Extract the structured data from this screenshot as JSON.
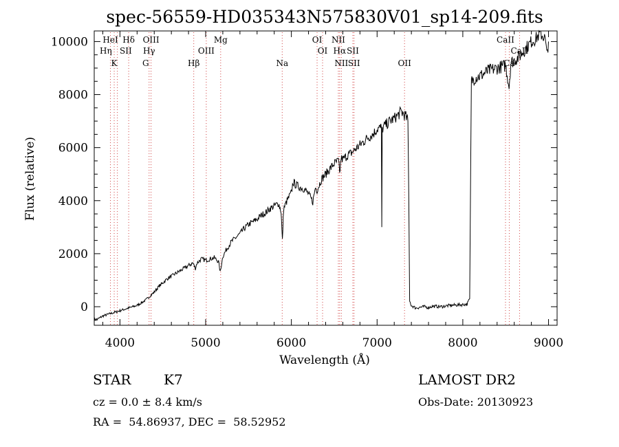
{
  "chart_data": {
    "type": "line",
    "title": "spec-56559-HD035343N575830V01_sp14-209.fits",
    "xlabel": "Wavelength (Å)",
    "ylabel": "Flux (relative)",
    "xlim": [
      3700,
      9100
    ],
    "ylim": [
      -700,
      10400
    ],
    "xticks": [
      4000,
      5000,
      6000,
      7000,
      8000,
      9000
    ],
    "yticks": [
      0,
      2000,
      4000,
      6000,
      8000,
      10000
    ],
    "grid": false,
    "legend": "none",
    "line_color": "#000000",
    "marker_line_color": "#d04040",
    "series": [
      {
        "x": [
          3700,
          3750,
          3800,
          3850,
          3900,
          3950,
          4000,
          4050,
          4100,
          4150,
          4200,
          4250,
          4300,
          4350,
          4400,
          4450,
          4500,
          4550,
          4600,
          4650,
          4700,
          4750,
          4800,
          4850,
          4880,
          4900,
          4950,
          5000,
          5050,
          5100,
          5150,
          5170,
          5200,
          5250,
          5300,
          5350,
          5400,
          5450,
          5500,
          5550,
          5600,
          5650,
          5700,
          5750,
          5800,
          5850,
          5880,
          5895,
          5910,
          5950,
          6000,
          6020,
          6050,
          6100,
          6150,
          6200,
          6250,
          6280,
          6300,
          6350,
          6400,
          6450,
          6500,
          6550,
          6563,
          6580,
          6600,
          6650,
          6700,
          6750,
          6800,
          6850,
          6900,
          6950,
          7000,
          7050,
          7055,
          7060,
          7080,
          7100,
          7150,
          7200,
          7250,
          7280,
          7300,
          7330,
          7360,
          7370,
          7380,
          7400,
          7450,
          7500,
          7550,
          7600,
          7650,
          7700,
          7750,
          7800,
          7850,
          7900,
          7950,
          8000,
          8050,
          8080,
          8100,
          8150,
          8200,
          8250,
          8300,
          8350,
          8400,
          8450,
          8500,
          8540,
          8560,
          8600,
          8650,
          8700,
          8750,
          8800,
          8850,
          8900,
          8940,
          8960,
          8980,
          9000
        ],
        "y": [
          -500,
          -450,
          -350,
          -300,
          -250,
          -200,
          -150,
          -100,
          -50,
          0,
          50,
          150,
          250,
          400,
          550,
          750,
          900,
          1050,
          1150,
          1250,
          1350,
          1450,
          1550,
          1650,
          1450,
          1650,
          1800,
          1750,
          1800,
          1850,
          1700,
          1300,
          1900,
          2200,
          2450,
          2600,
          2750,
          2950,
          3100,
          3200,
          3300,
          3450,
          3550,
          3700,
          3800,
          3900,
          3600,
          2500,
          3700,
          4000,
          4300,
          4700,
          4600,
          4500,
          4450,
          4250,
          3950,
          4500,
          4400,
          4800,
          5000,
          5200,
          5400,
          5500,
          5000,
          5600,
          5550,
          5700,
          5800,
          5950,
          6100,
          6250,
          6400,
          6500,
          6700,
          6750,
          3000,
          6700,
          6800,
          6850,
          7000,
          7100,
          7250,
          7350,
          7300,
          7200,
          7000,
          4000,
          200,
          50,
          -50,
          -20,
          0,
          -30,
          20,
          10,
          0,
          30,
          50,
          60,
          70,
          80,
          100,
          300,
          8500,
          8650,
          8700,
          8800,
          8900,
          8950,
          9000,
          9050,
          9100,
          8300,
          9200,
          9300,
          9400,
          9600,
          9800,
          10000,
          10100,
          10300,
          10200,
          10100,
          9500,
          10000
        ]
      }
    ],
    "line_groups": [
      {
        "x": [
          3889,
          3933,
          3970,
          4102,
          4340,
          4363,
          4861,
          5007,
          5175,
          5893,
          6300,
          6364,
          6548,
          6563,
          6583,
          6717,
          6731,
          7320,
          8498,
          8542,
          8662
        ],
        "color": "#d04040",
        "style": "dotted"
      }
    ],
    "line_labels": [
      {
        "text": "HeI",
        "x": 3889,
        "row": 1
      },
      {
        "text": "Hδ",
        "x": 4102,
        "row": 1
      },
      {
        "text": "OIII",
        "x": 4363,
        "row": 1
      },
      {
        "text": "Mg",
        "x": 5175,
        "row": 1
      },
      {
        "text": "OI",
        "x": 6300,
        "row": 1
      },
      {
        "text": "NII",
        "x": 6548,
        "row": 1
      },
      {
        "text": "CaII",
        "x": 8498,
        "row": 1
      },
      {
        "text": "Hη",
        "x": 3835,
        "row": 2
      },
      {
        "text": "SII",
        "x": 4068,
        "row": 2
      },
      {
        "text": "Hγ",
        "x": 4340,
        "row": 2
      },
      {
        "text": "OIII",
        "x": 5007,
        "row": 2
      },
      {
        "text": "OI",
        "x": 6364,
        "row": 2
      },
      {
        "text": "Hα",
        "x": 6563,
        "row": 2
      },
      {
        "text": "SII",
        "x": 6717,
        "row": 2
      },
      {
        "text": "CaII",
        "x": 8662,
        "row": 2
      },
      {
        "text": "K",
        "x": 3933,
        "row": 3
      },
      {
        "text": "G",
        "x": 4300,
        "row": 3
      },
      {
        "text": "Hβ",
        "x": 4861,
        "row": 3
      },
      {
        "text": "Na",
        "x": 5893,
        "row": 3
      },
      {
        "text": "NII",
        "x": 6583,
        "row": 3
      },
      {
        "text": "SII",
        "x": 6731,
        "row": 3
      },
      {
        "text": "OII",
        "x": 7320,
        "row": 3
      },
      {
        "text": "Ca",
        "x": 8542,
        "row": 3
      }
    ]
  },
  "info": {
    "object_type": "STAR",
    "subclass": "K7",
    "survey": "LAMOST DR2",
    "cz": "cz = 0.0 ± 8.4 km/s",
    "obs_date": "Obs-Date: 20130923",
    "coords": "RA =  54.86937, DEC =  58.52952"
  }
}
